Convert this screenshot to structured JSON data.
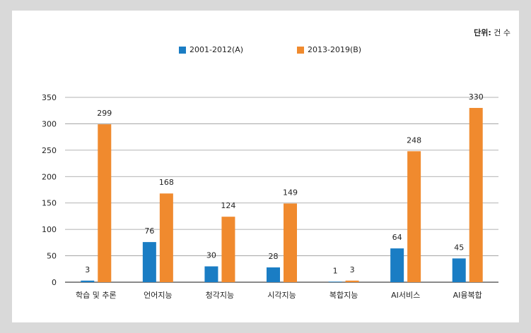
{
  "unit_label": {
    "prefix": "단위:",
    "value": " 건 수"
  },
  "colors": {
    "series_a": "#1a7dc4",
    "series_b": "#f08a2e",
    "grid": "#9a9a9a",
    "axis": "#444444"
  },
  "chart_data": {
    "type": "bar",
    "categories": [
      "학습 및 추론",
      "언어지능",
      "청각지능",
      "시각지능",
      "복합지능",
      "AI서비스",
      "AI융복합"
    ],
    "series": [
      {
        "name": "2001-2012(A)",
        "values": [
          3,
          76,
          30,
          28,
          1,
          64,
          45
        ]
      },
      {
        "name": "2013-2019(B)",
        "values": [
          299,
          168,
          124,
          149,
          3,
          248,
          330
        ]
      }
    ],
    "ylim": [
      0,
      350
    ],
    "yticks": [
      0,
      50,
      100,
      150,
      200,
      250,
      300,
      350
    ],
    "grid": true,
    "legend_position": "top-center",
    "data_labels": true
  }
}
